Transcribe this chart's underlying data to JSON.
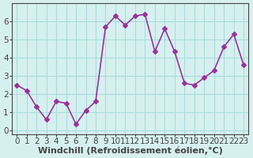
{
  "x": [
    0,
    1,
    2,
    3,
    4,
    5,
    6,
    7,
    8,
    9,
    10,
    11,
    12,
    13,
    14,
    15,
    16,
    17,
    18,
    19,
    20,
    21,
    22,
    23
  ],
  "y": [
    2.5,
    2.2,
    1.3,
    0.6,
    1.6,
    1.5,
    0.35,
    1.1,
    1.6,
    5.7,
    6.3,
    5.8,
    6.3,
    6.4,
    4.35,
    5.6,
    4.35,
    2.6,
    2.5,
    2.9,
    3.3,
    4.6,
    5.3,
    3.6
  ],
  "line_color": "#993399",
  "marker": "D",
  "marker_size": 3,
  "bg_color": "#d6f0ef",
  "grid_color": "#aadddd",
  "xlabel": "Windchill (Refroidissement éolien,°C)",
  "ylabel": "",
  "xlim": [
    -0.5,
    23.5
  ],
  "ylim": [
    -0.2,
    7.0
  ],
  "yticks": [
    0,
    1,
    2,
    3,
    4,
    5,
    6
  ],
  "xticks": [
    0,
    1,
    2,
    3,
    4,
    5,
    6,
    7,
    8,
    9,
    10,
    11,
    12,
    13,
    14,
    15,
    16,
    17,
    18,
    19,
    20,
    21,
    22,
    23
  ],
  "axis_color": "#444444",
  "tick_label_fontsize": 7.5,
  "xlabel_fontsize": 8,
  "line_width": 1.2
}
